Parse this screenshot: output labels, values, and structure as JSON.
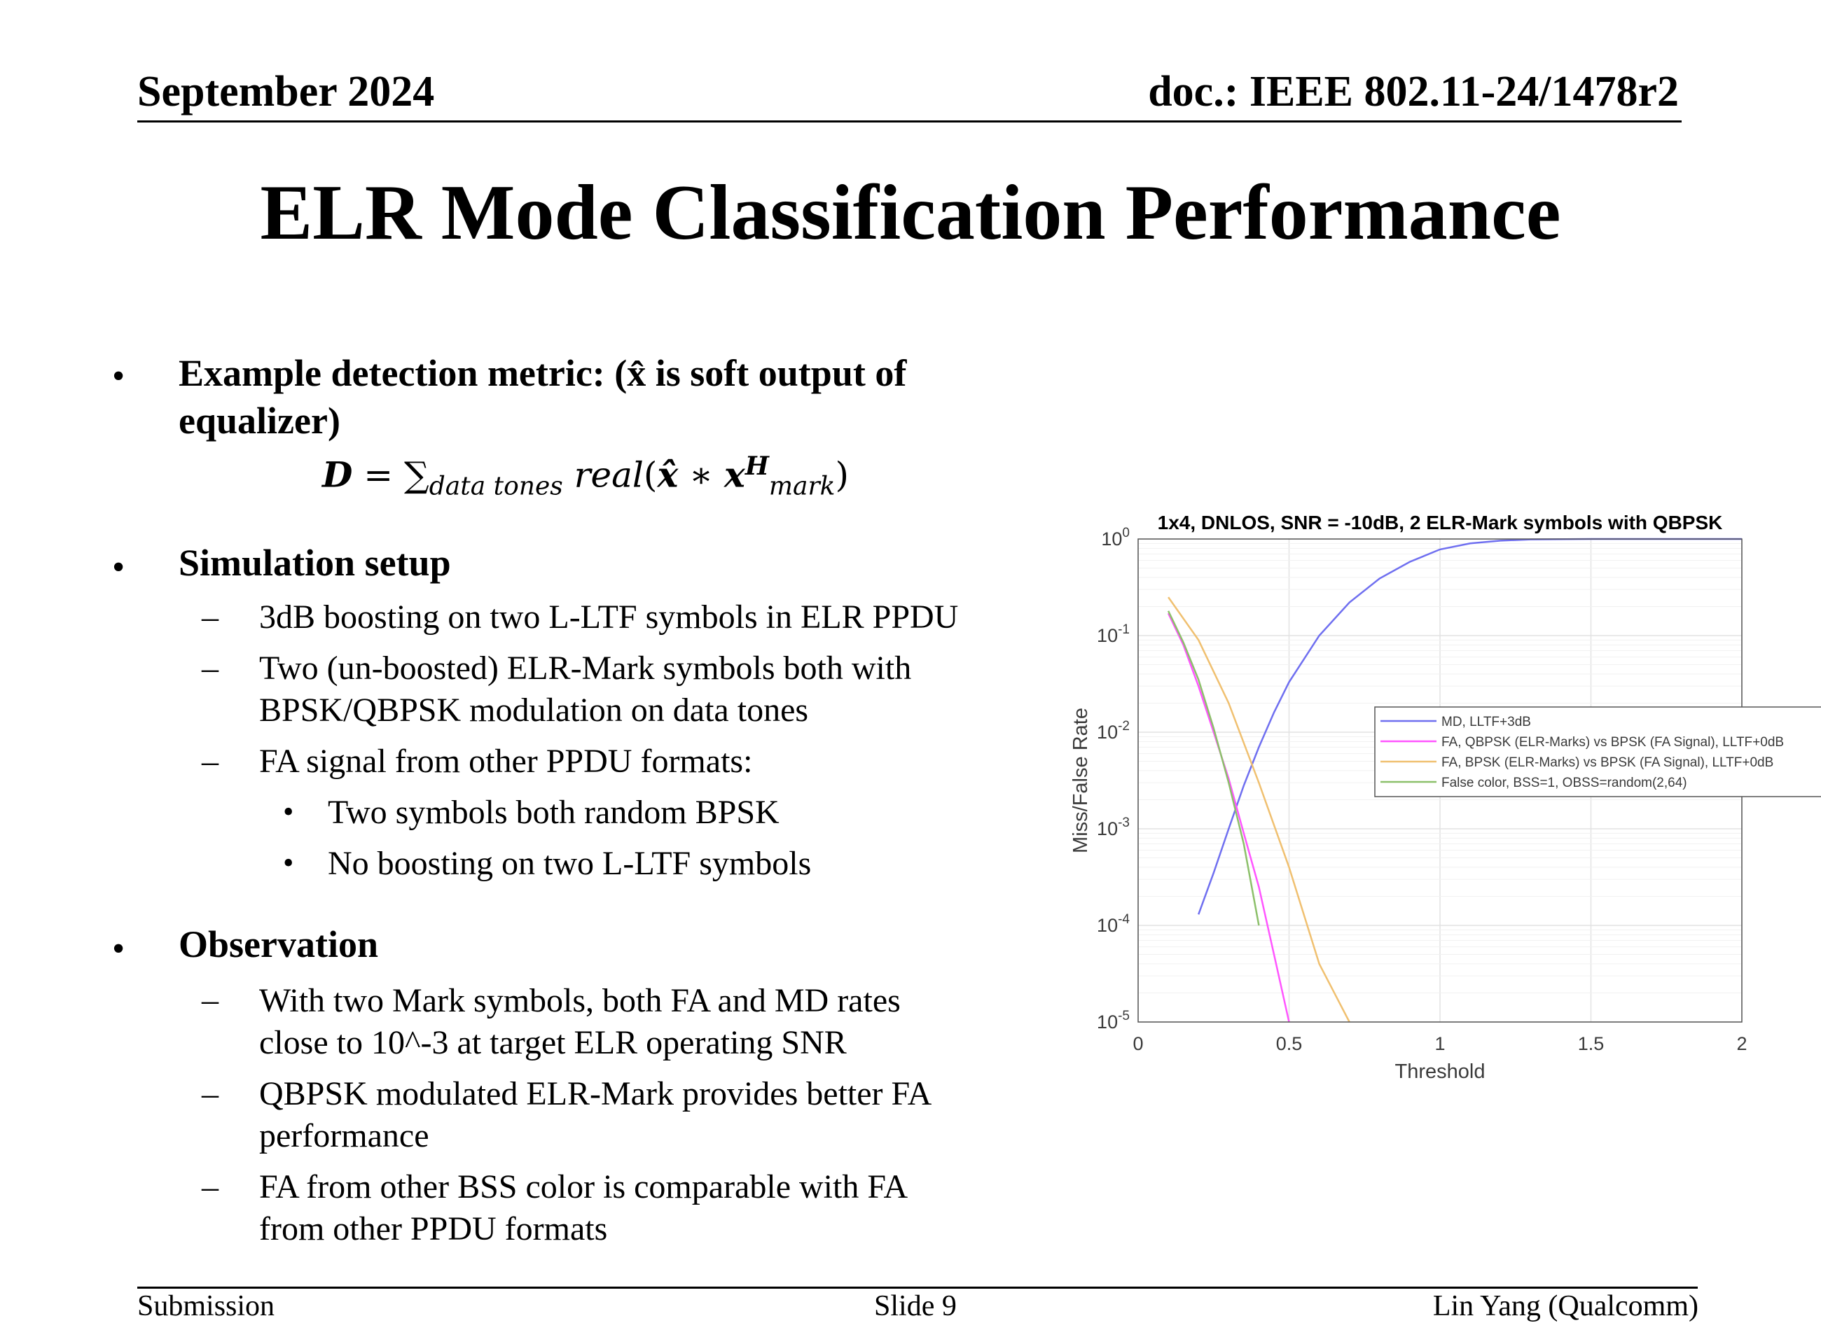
{
  "header": {
    "date": "September 2024",
    "doc": "doc.: IEEE 802.11-24/1478r2"
  },
  "title": "ELR Mode Classification Performance",
  "bullets": {
    "metric": {
      "line1": "Example detection metric: (x̂ is soft output of",
      "line2": "equalizer)",
      "formula": {
        "lhs": "D",
        "eq": " = ∑",
        "sum_sub": "data tones",
        "fn": " real",
        "open": "(",
        "xhat": "x̂",
        "op": " ∗ ",
        "x": "x",
        "x_sup": "H",
        "x_sub": "mark",
        "close": ")"
      }
    },
    "setup": {
      "heading": "Simulation setup",
      "items": [
        "3dB boosting on two L-LTF symbols in ELR PPDU",
        "Two (un-boosted) ELR-Mark symbols both with",
        "BPSK/QBPSK modulation on data tones",
        "FA signal from other PPDU formats:"
      ],
      "subitems": [
        "Two symbols both random BPSK",
        "No boosting on two L-LTF symbols"
      ]
    },
    "observation": {
      "heading": "Observation",
      "items": [
        "With two Mark symbols, both FA and MD rates",
        "close to 10^-3 at target ELR operating SNR",
        "QBPSK modulated ELR-Mark provides better FA",
        "performance",
        "FA from other BSS color is comparable with FA",
        "from other PPDU formats"
      ]
    },
    "bullet_glyph": "•",
    "dash_glyph": "–"
  },
  "chart_data": {
    "type": "line",
    "title": "1x4, DNLOS, SNR = -10dB,  2 ELR-Mark symbols with QBPSK",
    "xlabel": "Threshold",
    "ylabel": "Miss/False Rate",
    "xlim": [
      0,
      2
    ],
    "ylim": [
      1e-05,
      1
    ],
    "yscale": "log",
    "grid": true,
    "legend_position": "right-middle",
    "x_ticks": [
      "0",
      "0.5",
      "1",
      "1.5",
      "2"
    ],
    "y_ticks": [
      {
        "base": "10",
        "exp": "0"
      },
      {
        "base": "10",
        "exp": "-1"
      },
      {
        "base": "10",
        "exp": "-2"
      },
      {
        "base": "10",
        "exp": "-3"
      },
      {
        "base": "10",
        "exp": "-4"
      },
      {
        "base": "10",
        "exp": "-5"
      }
    ],
    "series": [
      {
        "name": "MD, LLTF+3dB",
        "color": "#6f6ff0",
        "x": [
          0.2,
          0.25,
          0.3,
          0.35,
          0.4,
          0.45,
          0.5,
          0.6,
          0.7,
          0.8,
          0.9,
          1.0,
          1.1,
          1.2,
          1.3,
          1.5,
          1.7,
          2.0
        ],
        "y": [
          0.00013,
          0.00035,
          0.001,
          0.0028,
          0.007,
          0.016,
          0.033,
          0.1,
          0.22,
          0.39,
          0.58,
          0.78,
          0.9,
          0.96,
          0.99,
          1.0,
          1.0,
          1.0
        ]
      },
      {
        "name": "FA, QBPSK (ELR-Marks) vs BPSK (FA Signal), LLTF+0dB",
        "color": "#ff55ff",
        "x": [
          0.1,
          0.15,
          0.2,
          0.25,
          0.3,
          0.35,
          0.4,
          0.45,
          0.5
        ],
        "y": [
          0.17,
          0.08,
          0.03,
          0.01,
          0.0033,
          0.0009,
          0.00025,
          5e-05,
          1e-05
        ]
      },
      {
        "name": "FA, BPSK (ELR-Marks) vs BPSK (FA Signal), LLTF+0dB",
        "color": "#f0c070",
        "x": [
          0.1,
          0.2,
          0.3,
          0.4,
          0.5,
          0.6,
          0.7
        ],
        "y": [
          0.25,
          0.09,
          0.02,
          0.003,
          0.0004,
          4e-05,
          1e-05
        ]
      },
      {
        "name": "False color, BSS=1, OBSS=random(2,64)",
        "color": "#8cc06a",
        "x": [
          0.1,
          0.15,
          0.2,
          0.25,
          0.3,
          0.35,
          0.4
        ],
        "y": [
          0.18,
          0.085,
          0.035,
          0.011,
          0.003,
          0.0007,
          0.0001
        ]
      }
    ]
  },
  "footer": {
    "left": "Submission",
    "center": "Slide 9",
    "right": "Lin Yang (Qualcomm)"
  }
}
